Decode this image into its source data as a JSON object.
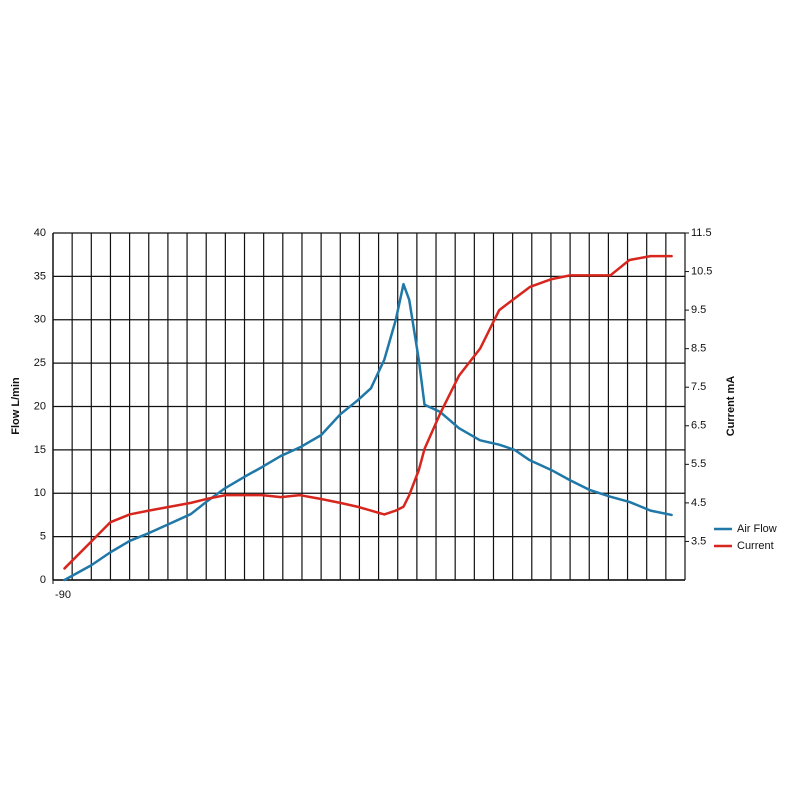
{
  "chart_data": {
    "type": "line",
    "y_label": "Flow  L/min",
    "y2_label": "Current  mA",
    "xlim": [
      -90,
      75
    ],
    "xticks": [
      -90
    ],
    "ylim": [
      0,
      40
    ],
    "yticks": [
      0,
      5,
      10,
      15,
      20,
      25,
      30,
      35,
      40
    ],
    "y2lim": [
      2.5,
      11.5
    ],
    "y2ticks": [
      3.5,
      4.5,
      5.5,
      6.5,
      7.5,
      8.5,
      9.5,
      10.5,
      11.5
    ],
    "grid": true,
    "legend": "right",
    "x": [
      -87,
      -80,
      -75,
      -70,
      -65,
      -59.5,
      -54,
      -50,
      -45,
      -40,
      -35.5,
      -30.5,
      -25.5,
      -20,
      -15,
      -10.5,
      -7,
      -3.5,
      -0.5,
      1.5,
      3,
      5.5,
      7,
      11,
      16,
      21.5,
      26.5,
      30.5,
      34.5,
      40,
      45,
      50,
      55.5,
      60.5,
      66,
      71.5
    ],
    "series": [
      {
        "name": "Air Flow",
        "color": "#1f78a8",
        "axis": "y",
        "values": [
          0,
          1.7,
          3.2,
          4.5,
          5.4,
          6.5,
          7.6,
          9,
          10.6,
          11.9,
          13,
          14.3,
          15.3,
          16.7,
          19.1,
          20.7,
          22.1,
          25.4,
          30,
          34.1,
          32.3,
          25.4,
          20.2,
          19.4,
          17.5,
          16.1,
          15.6,
          15,
          13.8,
          12.7,
          11.5,
          10.4,
          9.6,
          9,
          8,
          7.5
        ]
      },
      {
        "name": "Current",
        "color": "#d7261e",
        "axis": "y2",
        "values": [
          2.8,
          3.5,
          4,
          4.2,
          4.3,
          4.4,
          4.5,
          4.6,
          4.7,
          4.7,
          4.7,
          4.65,
          4.7,
          4.6,
          4.5,
          4.4,
          4.3,
          4.2,
          4.3,
          4.4,
          4.7,
          5.35,
          5.9,
          6.8,
          7.8,
          8.5,
          9.5,
          9.8,
          10.1,
          10.3,
          10.4,
          10.4,
          10.4,
          10.8,
          10.9,
          10.9
        ]
      }
    ]
  }
}
